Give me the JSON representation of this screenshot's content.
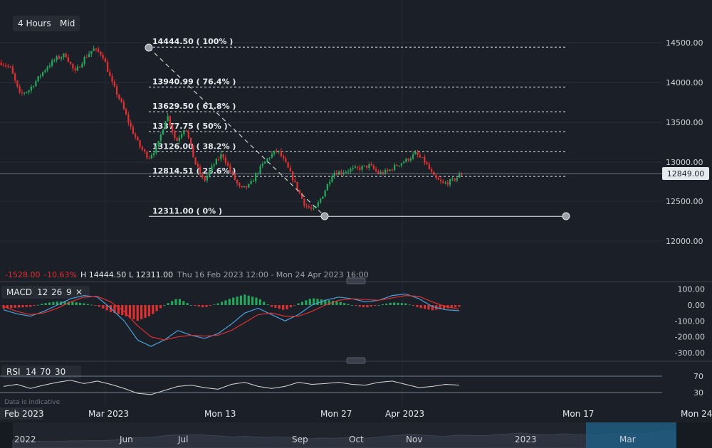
{
  "toolbar": {
    "timeframe": "4 Hours",
    "price_mode": "Mid"
  },
  "summary": {
    "change": "-1528.00",
    "change_pct": "-10.63%",
    "high": "H 14444.50",
    "low": "L 12311.00",
    "range": "Thu 16 Feb 2023 12:00 - Mon 24 Apr 2023 16:00"
  },
  "colors": {
    "up": "#26a65b",
    "down": "#e0302f",
    "macd": "#4aa3df",
    "signal": "#e0302f",
    "rsi": "#d9d9d9",
    "navigator": "#1f5f86"
  },
  "chart_data": [
    {
      "type": "candlestick",
      "x_range": [
        "Feb 2023",
        "Mon 24 Apr 2023 16:00"
      ],
      "ylim": [
        11700,
        14700
      ],
      "y_ticks": [
        12000,
        12500,
        13000,
        13500,
        14000,
        14500
      ],
      "y_tick_labels": [
        "12000.00",
        "12500.00",
        "13000.00",
        "13500.00",
        "14000.00",
        "14500.00"
      ],
      "x_tick_labels": [
        "Feb 2023",
        "Mar 2023",
        "Mon 13",
        "Mon 27",
        "Apr 2023",
        "Mon 17",
        "Mon 24"
      ],
      "current_price": 12849,
      "current_price_label": "12849.00",
      "close_path": [
        14250,
        14180,
        13850,
        13900,
        14050,
        14200,
        14300,
        14350,
        14120,
        14300,
        14420,
        14350,
        14000,
        13750,
        13450,
        13200,
        13050,
        13200,
        13600,
        13250,
        13450,
        13000,
        12750,
        12950,
        13100,
        12850,
        12650,
        12700,
        12900,
        13050,
        13150,
        12950,
        12700,
        12450,
        12380,
        12600,
        12860,
        12870,
        12900,
        12920,
        12950,
        12850,
        12880,
        12960,
        13020,
        13100,
        13000,
        12800,
        12720,
        12760,
        12849
      ],
      "fibonacci": [
        {
          "price": 14444.5,
          "label": "14444.50 ( 100% )"
        },
        {
          "price": 13940.99,
          "label": "13940.99 ( 76.4% )"
        },
        {
          "price": 13629.5,
          "label": "13629.50 ( 61.8% )"
        },
        {
          "price": 13377.75,
          "label": "13377.75 ( 50% )"
        },
        {
          "price": 13126,
          "label": "13126.00 ( 38.2% )"
        },
        {
          "price": 12814.51,
          "label": "12814.51 ( 23.6% )"
        },
        {
          "price": 12311,
          "label": "12311.00 ( 0% )"
        }
      ]
    },
    {
      "type": "macd",
      "label": "MACD",
      "params": [
        "12",
        "26",
        "9"
      ],
      "ylim": [
        -330,
        120
      ],
      "y_ticks": [
        100,
        0,
        -100,
        -200,
        -300
      ],
      "y_tick_labels": [
        "100.00",
        "0.00",
        "-100.00",
        "-200.00",
        "-300.00"
      ],
      "macd_path": [
        -30,
        -55,
        -70,
        -40,
        0,
        40,
        60,
        50,
        -20,
        -100,
        -220,
        -260,
        -220,
        -160,
        -190,
        -210,
        -180,
        -120,
        -50,
        -20,
        -60,
        -100,
        -60,
        0,
        30,
        50,
        40,
        20,
        30,
        60,
        70,
        40,
        -10,
        -30,
        -35
      ],
      "signal_path": [
        -10,
        -40,
        -60,
        -50,
        -20,
        20,
        50,
        55,
        20,
        -40,
        -130,
        -200,
        -220,
        -200,
        -190,
        -195,
        -190,
        -160,
        -110,
        -60,
        -50,
        -70,
        -70,
        -40,
        0,
        30,
        40,
        35,
        30,
        45,
        60,
        55,
        20,
        -10,
        -25
      ]
    },
    {
      "type": "rsi",
      "label": "RSI",
      "params": [
        "14",
        "70",
        "30"
      ],
      "ylim": [
        0,
        100
      ],
      "levels": [
        70,
        30
      ],
      "y_tick_labels": [
        "70",
        "30"
      ],
      "rsi_path": [
        45,
        50,
        40,
        48,
        55,
        60,
        52,
        58,
        50,
        40,
        28,
        25,
        35,
        45,
        48,
        42,
        38,
        50,
        55,
        45,
        40,
        45,
        55,
        50,
        52,
        55,
        50,
        48,
        55,
        58,
        50,
        42,
        45,
        50,
        48
      ]
    }
  ],
  "footer": {
    "note": "Data is indicative"
  },
  "navigator": {
    "labels": [
      {
        "text": "2022",
        "pos": 0.02
      },
      {
        "text": "Jun",
        "pos": 0.168
      },
      {
        "text": "Jul",
        "pos": 0.25
      },
      {
        "text": "Sep",
        "pos": 0.41
      },
      {
        "text": "Oct",
        "pos": 0.49
      },
      {
        "text": "Nov",
        "pos": 0.57
      },
      {
        "text": "2023",
        "pos": 0.723
      },
      {
        "text": "Mar",
        "pos": 0.87
      }
    ],
    "selection": [
      0.823,
      0.95
    ]
  }
}
